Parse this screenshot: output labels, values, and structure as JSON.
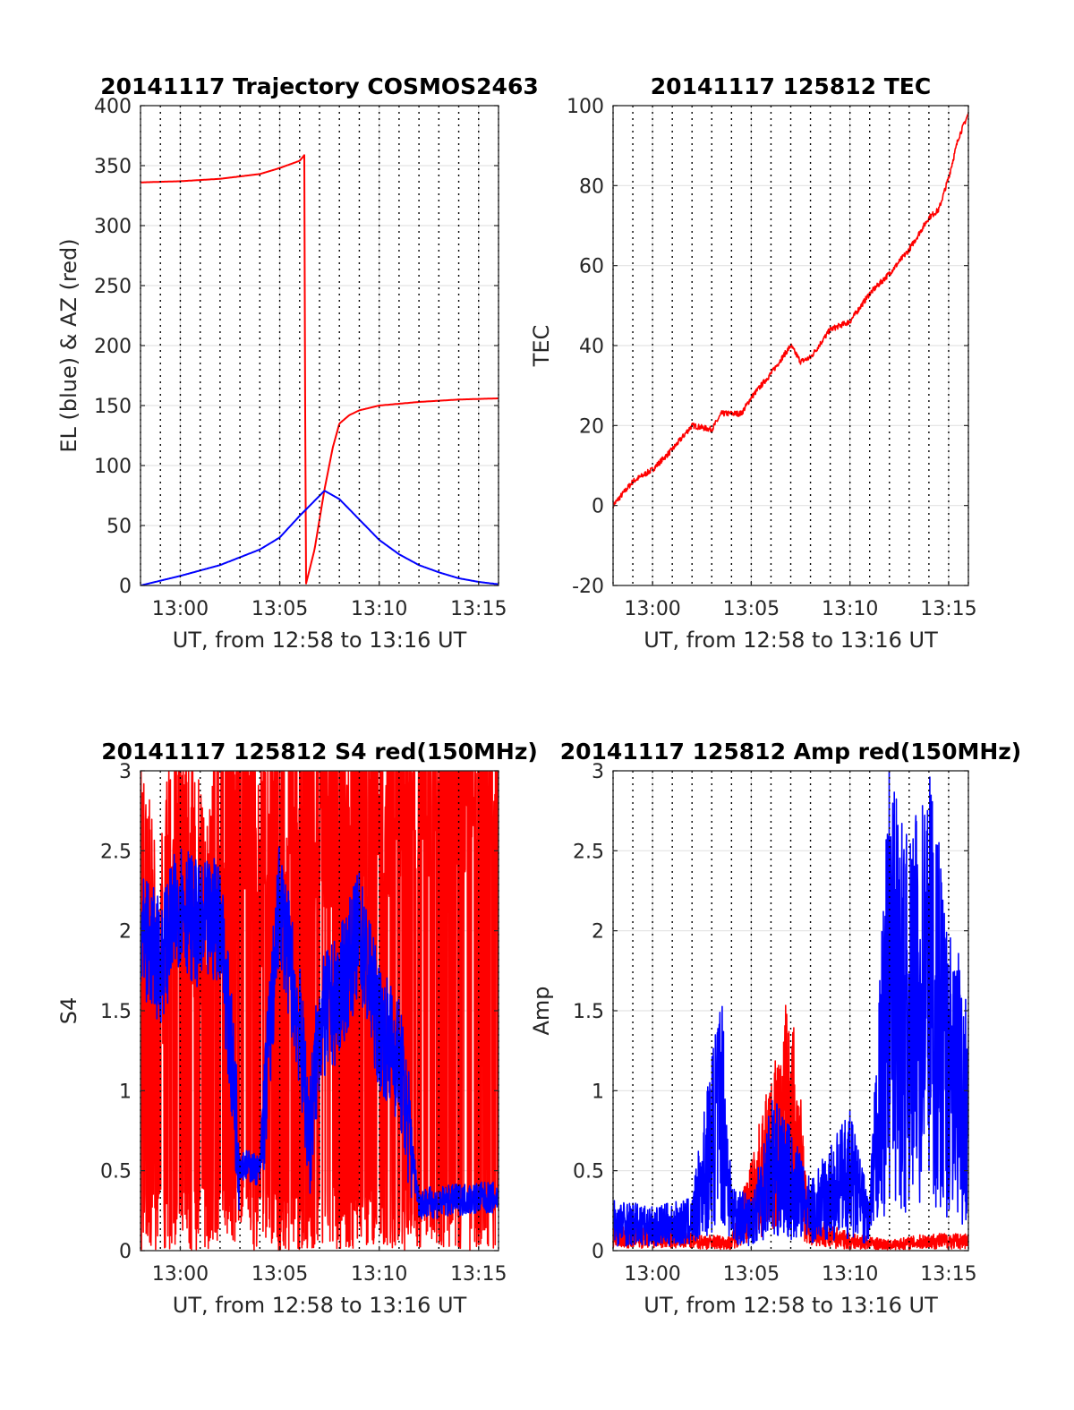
{
  "chart_data": [
    {
      "id": "traj",
      "type": "line",
      "title": "20141117 Trajectory COSMOS2463",
      "xlabel": "UT, from 12:58 to 13:16 UT",
      "ylabel": "EL (blue) & AZ (red)",
      "x_range": [
        "12:58",
        "13:16"
      ],
      "ylim": [
        0,
        400
      ],
      "x_ticks": [
        "13:00",
        "13:05",
        "13:10",
        "13:15"
      ],
      "y_ticks": [
        "0",
        "50",
        "100",
        "150",
        "200",
        "250",
        "300",
        "350",
        "400"
      ],
      "grid": true,
      "series": [
        {
          "color": "#ff0000",
          "points": [
            [
              "12:58",
              336
            ],
            [
              "13:00",
              337
            ],
            [
              "13:02",
              339
            ],
            [
              "13:04",
              343
            ],
            [
              "13:05",
              348
            ],
            [
              "13:06",
              354
            ],
            [
              "13:06:15",
              359
            ],
            [
              "13:06:18",
              0
            ],
            [
              "13:06:45",
              30
            ],
            [
              "13:07:15",
              80
            ],
            [
              "13:07:40",
              115
            ],
            [
              "13:08",
              135
            ],
            [
              "13:08:30",
              142
            ],
            [
              "13:09",
              146
            ],
            [
              "13:10",
              150
            ],
            [
              "13:12",
              153
            ],
            [
              "13:14",
              155
            ],
            [
              "13:16",
              156
            ]
          ]
        },
        {
          "color": "#0000ff",
          "points": [
            [
              "12:58",
              0
            ],
            [
              "13:00",
              8
            ],
            [
              "13:02",
              17
            ],
            [
              "13:04",
              30
            ],
            [
              "13:05",
              40
            ],
            [
              "13:06",
              58
            ],
            [
              "13:07:15",
              79
            ],
            [
              "13:08",
              72
            ],
            [
              "13:09",
              55
            ],
            [
              "13:10",
              38
            ],
            [
              "13:11",
              26
            ],
            [
              "13:12",
              17
            ],
            [
              "13:13",
              11
            ],
            [
              "13:14",
              6
            ],
            [
              "13:15",
              3
            ],
            [
              "13:16",
              1
            ]
          ]
        }
      ]
    },
    {
      "id": "tec",
      "type": "line",
      "title": "20141117 125812 TEC",
      "xlabel": "UT, from 12:58 to 13:16 UT",
      "ylabel": "TEC",
      "x_range": [
        "12:58",
        "13:16"
      ],
      "ylim": [
        -20,
        100
      ],
      "x_ticks": [
        "13:00",
        "13:05",
        "13:10",
        "13:15"
      ],
      "y_ticks": [
        "-20",
        "0",
        "20",
        "40",
        "60",
        "80",
        "100"
      ],
      "grid": true,
      "series": [
        {
          "color": "#ff0000",
          "points": [
            [
              "12:58",
              0
            ],
            [
              "12:59",
              6
            ],
            [
              "13:00",
              9
            ],
            [
              "13:01",
              14
            ],
            [
              "13:02",
              20
            ],
            [
              "13:03",
              19
            ],
            [
              "13:03:30",
              23
            ],
            [
              "13:04:30",
              23
            ],
            [
              "13:05",
              27
            ],
            [
              "13:06",
              33
            ],
            [
              "13:07",
              40
            ],
            [
              "13:07:30",
              36
            ],
            [
              "13:08",
              37
            ],
            [
              "13:09",
              44
            ],
            [
              "13:10",
              46
            ],
            [
              "13:11",
              53
            ],
            [
              "13:12",
              58
            ],
            [
              "13:13",
              64
            ],
            [
              "13:14",
              72
            ],
            [
              "13:14:30",
              74
            ],
            [
              "13:15",
              82
            ],
            [
              "13:15:30",
              92
            ],
            [
              "13:16",
              98
            ]
          ]
        }
      ]
    },
    {
      "id": "s4",
      "type": "line",
      "title": "20141117 125812 S4 red(150MHz)",
      "xlabel": "UT, from 12:58 to 13:16 UT",
      "ylabel": "S4",
      "x_range": [
        "12:58",
        "13:16"
      ],
      "ylim": [
        0,
        3
      ],
      "x_ticks": [
        "13:00",
        "13:05",
        "13:10",
        "13:15"
      ],
      "y_ticks": [
        "0",
        "0.5",
        "1",
        "1.5",
        "2",
        "2.5",
        "3"
      ],
      "grid": true,
      "series": [
        {
          "color": "#ff0000",
          "points": [
            [
              "12:58",
              2.0
            ],
            [
              "12:59",
              1.5
            ],
            [
              "13:00",
              2.5
            ],
            [
              "13:01",
              1.8
            ],
            [
              "13:02",
              2.3
            ],
            [
              "13:03",
              2.9
            ],
            [
              "13:04",
              2.2
            ],
            [
              "13:05",
              2.6
            ],
            [
              "13:06",
              2.8
            ],
            [
              "13:07",
              2.5
            ],
            [
              "13:08",
              2.7
            ],
            [
              "13:09",
              2.6
            ],
            [
              "13:10",
              2.5
            ],
            [
              "13:11",
              2.8
            ],
            [
              "13:12",
              2.7
            ],
            [
              "13:13",
              2.9
            ],
            [
              "13:14",
              2.8
            ],
            [
              "13:15",
              2.9
            ],
            [
              "13:16",
              3.0
            ]
          ]
        },
        {
          "color": "#0000ff",
          "points": [
            [
              "12:58",
              2.0
            ],
            [
              "12:59",
              1.8
            ],
            [
              "13:00",
              2.2
            ],
            [
              "13:01",
              2.0
            ],
            [
              "13:02",
              2.1
            ],
            [
              "13:03",
              0.55
            ],
            [
              "13:04",
              0.5
            ],
            [
              "13:05",
              2.2
            ],
            [
              "13:06",
              1.4
            ],
            [
              "13:06:30",
              0.7
            ],
            [
              "13:07",
              1.4
            ],
            [
              "13:08",
              1.6
            ],
            [
              "13:09",
              2.0
            ],
            [
              "13:10",
              1.4
            ],
            [
              "13:11",
              1.2
            ],
            [
              "13:12",
              0.3
            ],
            [
              "13:13",
              0.3
            ],
            [
              "13:14",
              0.32
            ],
            [
              "13:15",
              0.33
            ],
            [
              "13:16",
              0.33
            ]
          ]
        }
      ]
    },
    {
      "id": "amp",
      "type": "line",
      "title": "20141117 125812 Amp red(150MHz)",
      "xlabel": "UT, from 12:58 to 13:16 UT",
      "ylabel": "Amp",
      "x_range": [
        "12:58",
        "13:16"
      ],
      "ylim": [
        0,
        3
      ],
      "x_ticks": [
        "13:00",
        "13:05",
        "13:10",
        "13:15"
      ],
      "y_ticks": [
        "0",
        "0.5",
        "1",
        "1.5",
        "2",
        "2.5",
        "3"
      ],
      "grid": true,
      "series": [
        {
          "color": "#ff0000",
          "points": [
            [
              "12:58",
              0.15
            ],
            [
              "13:00",
              0.12
            ],
            [
              "13:02",
              0.1
            ],
            [
              "13:04",
              0.08
            ],
            [
              "13:06",
              1.0
            ],
            [
              "13:07",
              1.55
            ],
            [
              "13:08",
              0.2
            ],
            [
              "13:10",
              0.1
            ],
            [
              "13:12",
              0.06
            ],
            [
              "13:14",
              0.1
            ],
            [
              "13:16",
              0.1
            ]
          ]
        },
        {
          "color": "#0000ff",
          "points": [
            [
              "12:58",
              0.3
            ],
            [
              "13:00",
              0.25
            ],
            [
              "13:02",
              0.3
            ],
            [
              "13:03:30",
              1.55
            ],
            [
              "13:04",
              0.4
            ],
            [
              "13:05",
              0.3
            ],
            [
              "13:06",
              0.9
            ],
            [
              "13:07",
              0.7
            ],
            [
              "13:08",
              0.4
            ],
            [
              "13:09",
              0.6
            ],
            [
              "13:10",
              0.8
            ],
            [
              "13:11",
              0.3
            ],
            [
              "13:12",
              2.8
            ],
            [
              "13:13",
              2.3
            ],
            [
              "13:14",
              2.9
            ],
            [
              "13:15",
              1.8
            ],
            [
              "13:16",
              1.6
            ]
          ]
        }
      ]
    }
  ]
}
